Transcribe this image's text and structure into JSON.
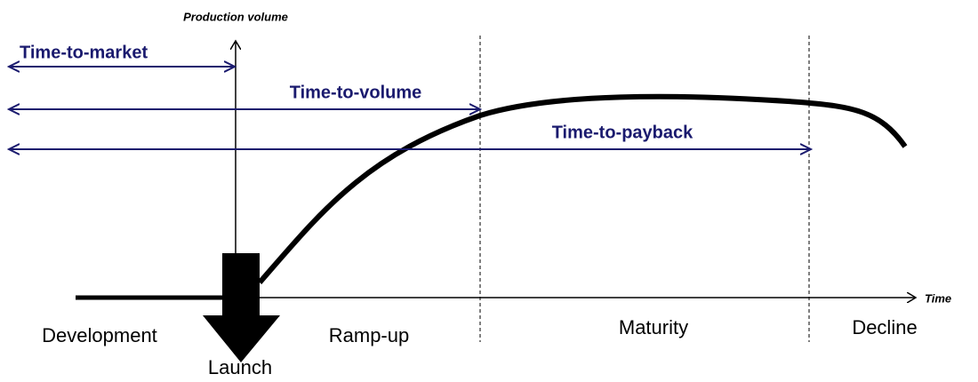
{
  "axes": {
    "y_label": "Production volume",
    "x_label": "Time"
  },
  "spans": [
    {
      "label": "Time-to-market"
    },
    {
      "label": "Time-to-volume"
    },
    {
      "label": "Time-to-payback"
    }
  ],
  "phases": [
    {
      "label": "Development"
    },
    {
      "label": "Launch"
    },
    {
      "label": "Ramp-up"
    },
    {
      "label": "Maturity"
    },
    {
      "label": "Decline"
    }
  ]
}
